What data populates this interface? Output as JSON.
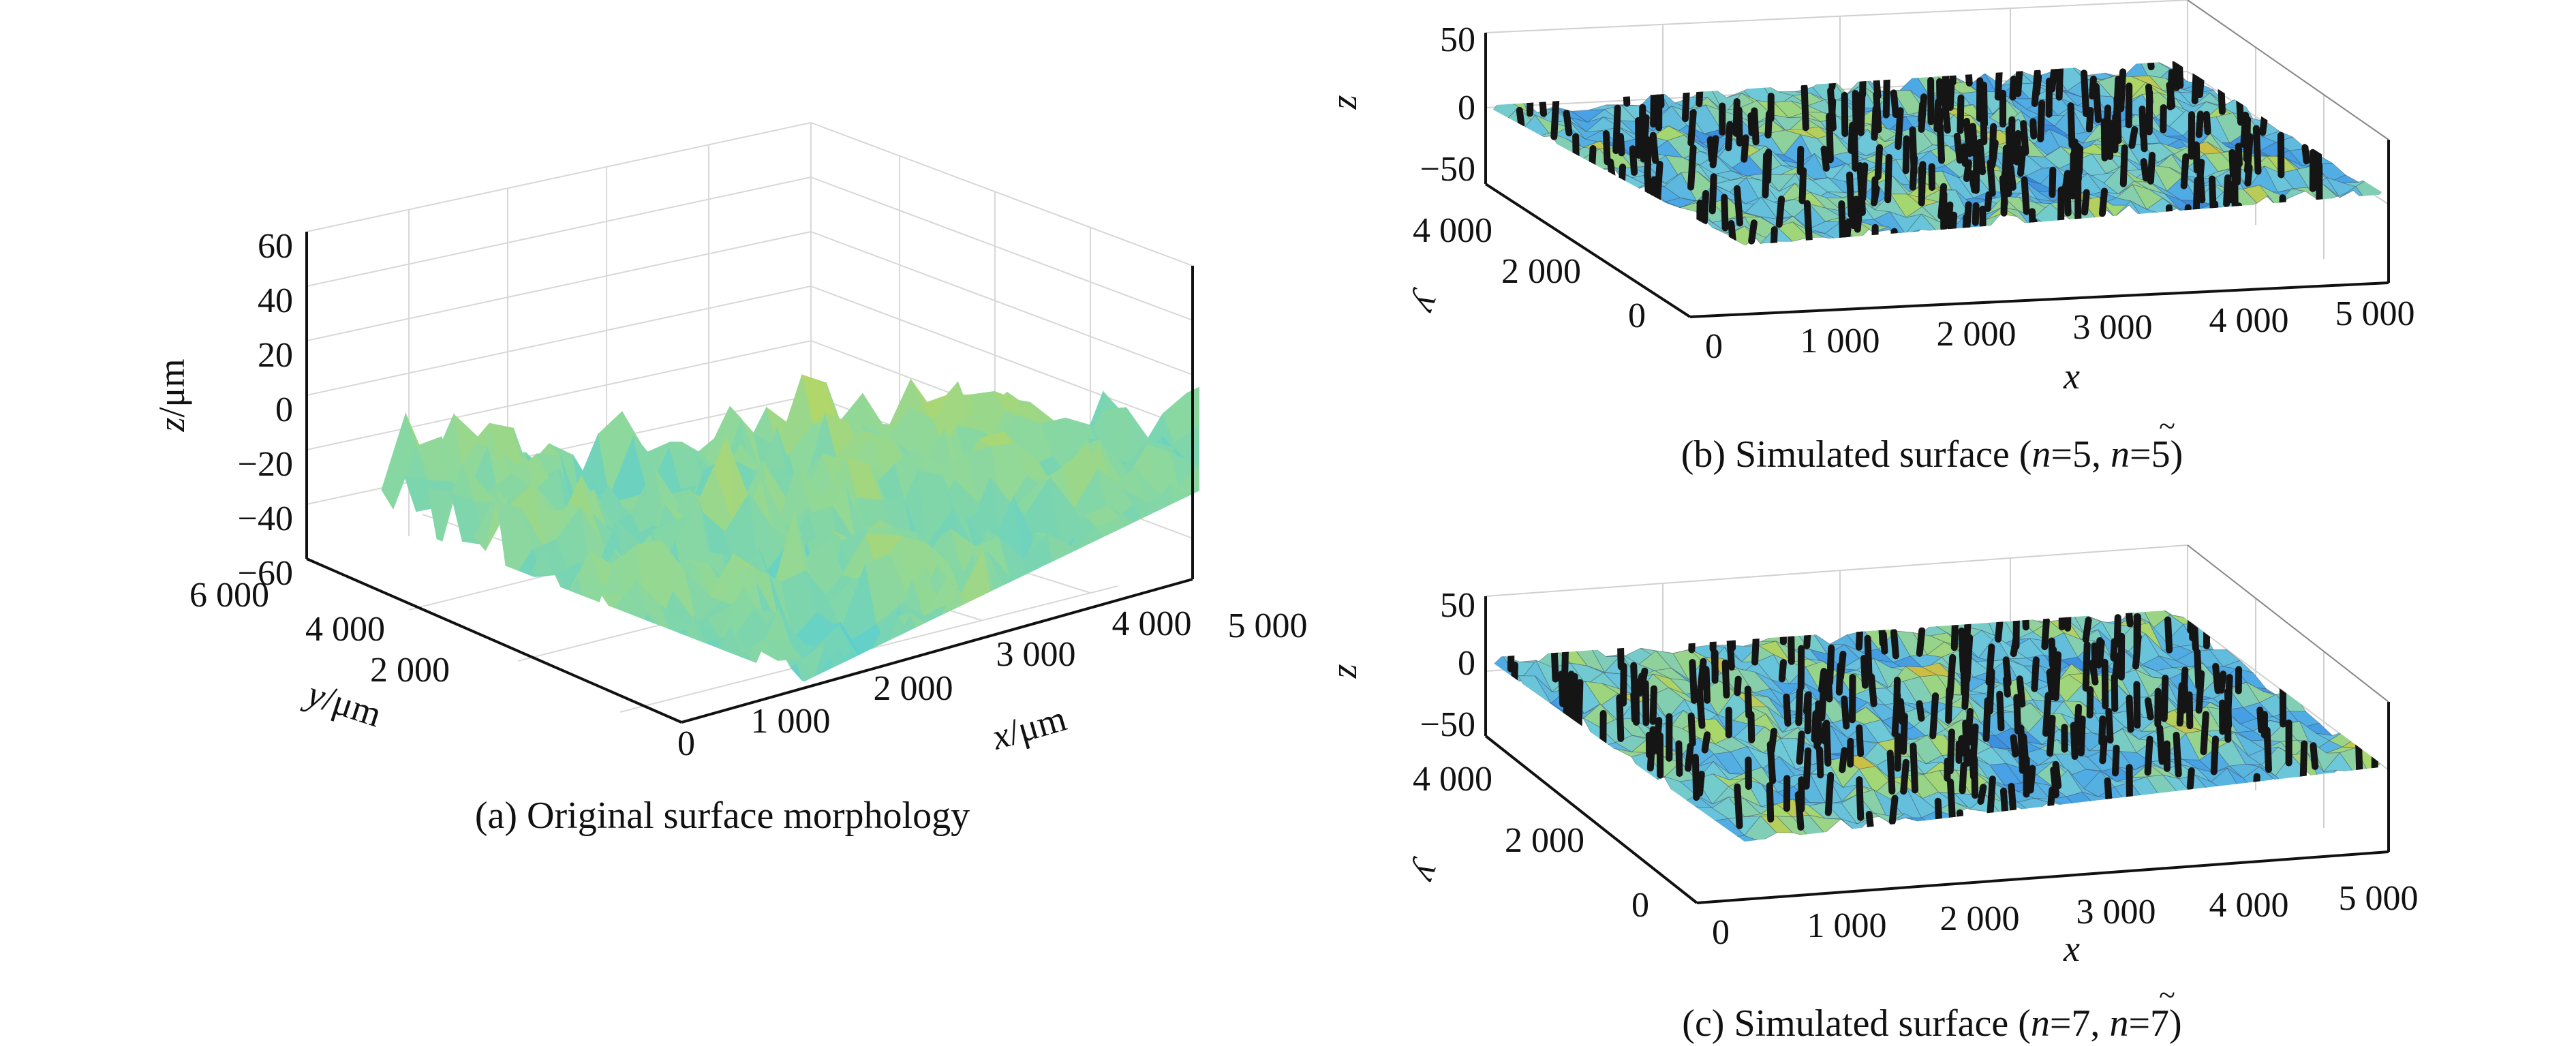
{
  "figure": {
    "panel_a": {
      "caption_prefix": "(a) ",
      "caption_text": "Original surface morphology"
    },
    "panel_b": {
      "caption_prefix": "(b) Simulated surface  (",
      "n_symbol": "n",
      "n_eq": "=5, ",
      "n_tilde_symbol": "n",
      "n_tilde_eq": "=",
      "tilde_value": "5",
      "tilde": "~",
      "caption_suffix": ")"
    },
    "panel_c": {
      "caption_prefix": "(c) Simulated surface  (",
      "n_symbol": "n",
      "n_eq": "=7, ",
      "n_tilde_symbol": "n",
      "n_tilde_eq": "=",
      "tilde_value": "7",
      "tilde": "~",
      "caption_suffix": ")"
    }
  },
  "chart_data": [
    {
      "type": "surface3d",
      "panel": "a",
      "title": "(a) Original surface morphology",
      "xlabel": "x/μm",
      "ylabel": "y/μm",
      "zlabel": "z/μm",
      "xlim": [
        0,
        5000
      ],
      "ylim": [
        0,
        6000
      ],
      "zlim": [
        -60,
        60
      ],
      "x_ticks": [
        "1 000",
        "2 000",
        "3 000",
        "4 000",
        "5 000"
      ],
      "y_ticks": [
        "0",
        "2 000",
        "4 000",
        "6 000"
      ],
      "z_ticks": [
        "60",
        "40",
        "20",
        "0",
        "−20",
        "−40",
        "−60"
      ],
      "colormap": [
        "#1f5fd0",
        "#3d9be0",
        "#5ed0cf",
        "#8fd89a",
        "#c8d54a",
        "#f0a030"
      ],
      "grid": true
    },
    {
      "type": "surface3d",
      "panel": "b",
      "title": "(b) Simulated surface (n=5, ñ=5)",
      "xlabel": "x",
      "ylabel": "y",
      "zlabel": "z",
      "xlim": [
        0,
        5000
      ],
      "ylim": [
        0,
        4000
      ],
      "zlim": [
        -50,
        50
      ],
      "x_ticks": [
        "0",
        "1 000",
        "2 000",
        "3 000",
        "4 000",
        "5 000"
      ],
      "y_ticks": [
        "0",
        "2 000",
        "4 000"
      ],
      "z_ticks": [
        "50",
        "0",
        "−50"
      ],
      "marker_color": "#151515",
      "colormap": [
        "#2a6fd6",
        "#4aa6e6",
        "#6ec9d8",
        "#a8d86a",
        "#e0b030"
      ],
      "grid": true
    },
    {
      "type": "surface3d",
      "panel": "c",
      "title": "(c) Simulated surface (n=7, ñ=7)",
      "xlabel": "x",
      "ylabel": "y",
      "zlabel": "z",
      "xlim": [
        0,
        5000
      ],
      "ylim": [
        0,
        4000
      ],
      "zlim": [
        -50,
        50
      ],
      "x_ticks": [
        "0",
        "1 000",
        "2 000",
        "3 000",
        "4 000",
        "5 000"
      ],
      "y_ticks": [
        "0",
        "2 000",
        "4 000"
      ],
      "z_ticks": [
        "50",
        "0",
        "−50"
      ],
      "marker_color": "#151515",
      "colormap": [
        "#2a6fd6",
        "#4aa6e6",
        "#6ec9d8",
        "#a8d86a",
        "#e0b030"
      ],
      "grid": true
    }
  ]
}
